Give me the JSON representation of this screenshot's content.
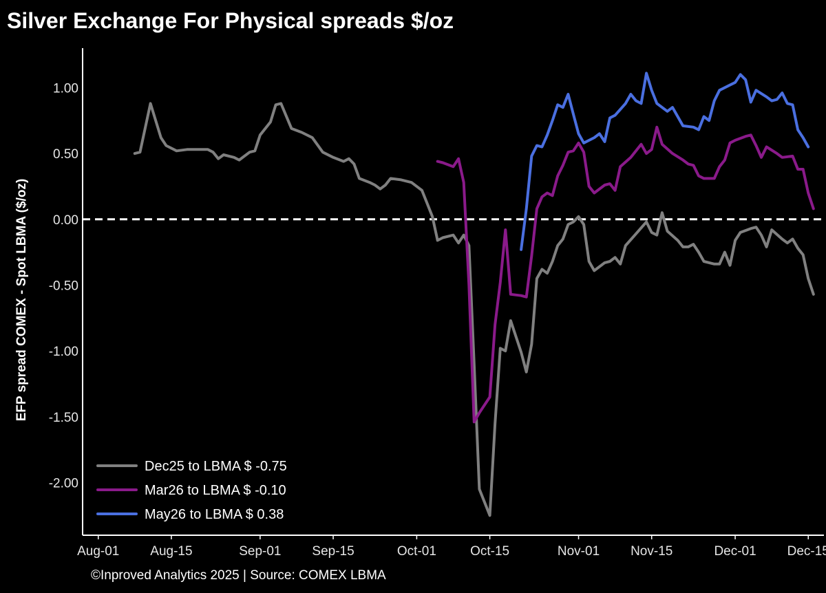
{
  "title": "Silver Exchange For Physical spreads $/oz",
  "footer": "©Inproved Analytics 2025 | Source: COMEX LBMA",
  "chart_data": {
    "type": "line",
    "title": "Silver Exchange For Physical spreads $/oz",
    "xlabel": "",
    "ylabel": "EFP spread COMEX - Spot LBMA ($/oz)",
    "xlim": [
      "2025-07-29",
      "2025-12-18"
    ],
    "ylim": [
      -2.4,
      1.3
    ],
    "x_ticks": [
      {
        "date": "2025-08-01",
        "label": "Aug-01"
      },
      {
        "date": "2025-08-15",
        "label": "Aug-15"
      },
      {
        "date": "2025-09-01",
        "label": "Sep-01"
      },
      {
        "date": "2025-09-15",
        "label": "Sep-15"
      },
      {
        "date": "2025-10-01",
        "label": "Oct-01"
      },
      {
        "date": "2025-10-15",
        "label": "Oct-15"
      },
      {
        "date": "2025-11-01",
        "label": "Nov-01"
      },
      {
        "date": "2025-11-15",
        "label": "Nov-15"
      },
      {
        "date": "2025-12-01",
        "label": "Dec-01"
      },
      {
        "date": "2025-12-15",
        "label": "Dec-15"
      }
    ],
    "y_ticks": [
      {
        "value": 1.0,
        "label": "1.00"
      },
      {
        "value": 0.5,
        "label": "0.50"
      },
      {
        "value": 0.0,
        "label": "0.00"
      },
      {
        "value": -0.5,
        "label": "-0.50"
      },
      {
        "value": -1.0,
        "label": "-1.00"
      },
      {
        "value": -1.5,
        "label": "-1.50"
      },
      {
        "value": -2.0,
        "label": "-2.00"
      }
    ],
    "zero_line": true,
    "grid": false,
    "legend_position": "bottom-left",
    "series": [
      {
        "name": "Dec25 to LBMA $ -0.75",
        "color": "#808080",
        "points": [
          [
            "2025-08-08",
            0.5
          ],
          [
            "2025-08-09",
            0.51
          ],
          [
            "2025-08-11",
            0.88
          ],
          [
            "2025-08-13",
            0.62
          ],
          [
            "2025-08-14",
            0.56
          ],
          [
            "2025-08-16",
            0.52
          ],
          [
            "2025-08-18",
            0.53
          ],
          [
            "2025-08-20",
            0.53
          ],
          [
            "2025-08-22",
            0.53
          ],
          [
            "2025-08-23",
            0.51
          ],
          [
            "2025-08-24",
            0.46
          ],
          [
            "2025-08-25",
            0.49
          ],
          [
            "2025-08-27",
            0.47
          ],
          [
            "2025-08-28",
            0.45
          ],
          [
            "2025-08-30",
            0.51
          ],
          [
            "2025-08-31",
            0.52
          ],
          [
            "2025-09-01",
            0.64
          ],
          [
            "2025-09-03",
            0.74
          ],
          [
            "2025-09-04",
            0.87
          ],
          [
            "2025-09-05",
            0.88
          ],
          [
            "2025-09-07",
            0.69
          ],
          [
            "2025-09-09",
            0.66
          ],
          [
            "2025-09-11",
            0.62
          ],
          [
            "2025-09-13",
            0.51
          ],
          [
            "2025-09-15",
            0.47
          ],
          [
            "2025-09-17",
            0.44
          ],
          [
            "2025-09-18",
            0.46
          ],
          [
            "2025-09-19",
            0.42
          ],
          [
            "2025-09-20",
            0.31
          ],
          [
            "2025-09-22",
            0.28
          ],
          [
            "2025-09-23",
            0.26
          ],
          [
            "2025-09-24",
            0.23
          ],
          [
            "2025-09-25",
            0.26
          ],
          [
            "2025-09-26",
            0.31
          ],
          [
            "2025-09-28",
            0.3
          ],
          [
            "2025-09-30",
            0.28
          ],
          [
            "2025-10-02",
            0.22
          ],
          [
            "2025-10-03",
            0.12
          ],
          [
            "2025-10-04",
            0.02
          ],
          [
            "2025-10-05",
            -0.16
          ],
          [
            "2025-10-06",
            -0.14
          ],
          [
            "2025-10-08",
            -0.12
          ],
          [
            "2025-10-09",
            -0.18
          ],
          [
            "2025-10-10",
            -0.12
          ],
          [
            "2025-10-11",
            -0.2
          ],
          [
            "2025-10-12",
            -1.1
          ],
          [
            "2025-10-13",
            -2.05
          ],
          [
            "2025-10-15",
            -2.25
          ],
          [
            "2025-10-16",
            -1.55
          ],
          [
            "2025-10-17",
            -0.98
          ],
          [
            "2025-10-18",
            -1.0
          ],
          [
            "2025-10-19",
            -0.77
          ],
          [
            "2025-10-21",
            -1.01
          ],
          [
            "2025-10-22",
            -1.16
          ],
          [
            "2025-10-23",
            -0.95
          ],
          [
            "2025-10-24",
            -0.45
          ],
          [
            "2025-10-25",
            -0.38
          ],
          [
            "2025-10-26",
            -0.41
          ],
          [
            "2025-10-27",
            -0.32
          ],
          [
            "2025-10-28",
            -0.2
          ],
          [
            "2025-10-29",
            -0.15
          ],
          [
            "2025-10-30",
            -0.04
          ],
          [
            "2025-10-31",
            -0.02
          ],
          [
            "2025-11-01",
            0.02
          ],
          [
            "2025-11-02",
            -0.04
          ],
          [
            "2025-11-03",
            -0.32
          ],
          [
            "2025-11-04",
            -0.39
          ],
          [
            "2025-11-06",
            -0.33
          ],
          [
            "2025-11-07",
            -0.32
          ],
          [
            "2025-11-08",
            -0.29
          ],
          [
            "2025-11-09",
            -0.34
          ],
          [
            "2025-11-10",
            -0.2
          ],
          [
            "2025-11-12",
            -0.11
          ],
          [
            "2025-11-14",
            -0.02
          ],
          [
            "2025-11-15",
            -0.1
          ],
          [
            "2025-11-16",
            -0.12
          ],
          [
            "2025-11-17",
            0.05
          ],
          [
            "2025-11-18",
            -0.09
          ],
          [
            "2025-11-20",
            -0.16
          ],
          [
            "2025-11-21",
            -0.21
          ],
          [
            "2025-11-22",
            -0.21
          ],
          [
            "2025-11-23",
            -0.19
          ],
          [
            "2025-11-24",
            -0.25
          ],
          [
            "2025-11-25",
            -0.32
          ],
          [
            "2025-11-27",
            -0.34
          ],
          [
            "2025-11-28",
            -0.34
          ],
          [
            "2025-11-29",
            -0.25
          ],
          [
            "2025-11-30",
            -0.35
          ],
          [
            "2025-12-01",
            -0.16
          ],
          [
            "2025-12-02",
            -0.1
          ],
          [
            "2025-12-04",
            -0.07
          ],
          [
            "2025-12-05",
            -0.06
          ],
          [
            "2025-12-06",
            -0.12
          ],
          [
            "2025-12-07",
            -0.21
          ],
          [
            "2025-12-08",
            -0.08
          ],
          [
            "2025-12-10",
            -0.15
          ],
          [
            "2025-12-11",
            -0.18
          ],
          [
            "2025-12-12",
            -0.15
          ],
          [
            "2025-12-13",
            -0.22
          ],
          [
            "2025-12-14",
            -0.27
          ],
          [
            "2025-12-15",
            -0.45
          ],
          [
            "2025-12-16",
            -0.57
          ]
        ]
      },
      {
        "name": "Mar26 to LBMA $ -0.10",
        "color": "#8A1A8A",
        "points": [
          [
            "2025-10-05",
            0.44
          ],
          [
            "2025-10-06",
            0.43
          ],
          [
            "2025-10-08",
            0.4
          ],
          [
            "2025-10-09",
            0.46
          ],
          [
            "2025-10-10",
            0.28
          ],
          [
            "2025-10-11",
            -0.5
          ],
          [
            "2025-10-12",
            -1.54
          ],
          [
            "2025-10-13",
            -1.47
          ],
          [
            "2025-10-15",
            -1.35
          ],
          [
            "2025-10-16",
            -0.8
          ],
          [
            "2025-10-17",
            -0.48
          ],
          [
            "2025-10-18",
            -0.08
          ],
          [
            "2025-10-19",
            -0.57
          ],
          [
            "2025-10-21",
            -0.58
          ],
          [
            "2025-10-22",
            -0.59
          ],
          [
            "2025-10-23",
            -0.28
          ],
          [
            "2025-10-24",
            0.08
          ],
          [
            "2025-10-25",
            0.17
          ],
          [
            "2025-10-26",
            0.2
          ],
          [
            "2025-10-27",
            0.18
          ],
          [
            "2025-10-28",
            0.33
          ],
          [
            "2025-10-29",
            0.41
          ],
          [
            "2025-10-30",
            0.51
          ],
          [
            "2025-10-31",
            0.52
          ],
          [
            "2025-11-01",
            0.58
          ],
          [
            "2025-11-02",
            0.51
          ],
          [
            "2025-11-03",
            0.25
          ],
          [
            "2025-11-04",
            0.2
          ],
          [
            "2025-11-06",
            0.26
          ],
          [
            "2025-11-07",
            0.27
          ],
          [
            "2025-11-08",
            0.22
          ],
          [
            "2025-11-09",
            0.4
          ],
          [
            "2025-11-11",
            0.47
          ],
          [
            "2025-11-13",
            0.57
          ],
          [
            "2025-11-14",
            0.5
          ],
          [
            "2025-11-15",
            0.53
          ],
          [
            "2025-11-16",
            0.7
          ],
          [
            "2025-11-17",
            0.57
          ],
          [
            "2025-11-19",
            0.5
          ],
          [
            "2025-11-21",
            0.45
          ],
          [
            "2025-11-22",
            0.42
          ],
          [
            "2025-11-23",
            0.41
          ],
          [
            "2025-11-24",
            0.33
          ],
          [
            "2025-11-25",
            0.31
          ],
          [
            "2025-11-27",
            0.31
          ],
          [
            "2025-11-28",
            0.4
          ],
          [
            "2025-11-29",
            0.45
          ],
          [
            "2025-11-30",
            0.58
          ],
          [
            "2025-12-01",
            0.6
          ],
          [
            "2025-12-03",
            0.63
          ],
          [
            "2025-12-04",
            0.64
          ],
          [
            "2025-12-05",
            0.56
          ],
          [
            "2025-12-06",
            0.47
          ],
          [
            "2025-12-07",
            0.55
          ],
          [
            "2025-12-09",
            0.5
          ],
          [
            "2025-12-10",
            0.47
          ],
          [
            "2025-12-12",
            0.48
          ],
          [
            "2025-12-13",
            0.38
          ],
          [
            "2025-12-14",
            0.38
          ],
          [
            "2025-12-15",
            0.2
          ],
          [
            "2025-12-16",
            0.08
          ]
        ]
      },
      {
        "name": "May26 to LBMA $ 0.38",
        "color": "#4A6FE0",
        "points": [
          [
            "2025-10-21",
            -0.23
          ],
          [
            "2025-10-22",
            0.08
          ],
          [
            "2025-10-23",
            0.48
          ],
          [
            "2025-10-24",
            0.56
          ],
          [
            "2025-10-25",
            0.55
          ],
          [
            "2025-10-26",
            0.64
          ],
          [
            "2025-10-27",
            0.75
          ],
          [
            "2025-10-28",
            0.87
          ],
          [
            "2025-10-29",
            0.85
          ],
          [
            "2025-10-30",
            0.95
          ],
          [
            "2025-10-31",
            0.8
          ],
          [
            "2025-11-01",
            0.65
          ],
          [
            "2025-11-02",
            0.58
          ],
          [
            "2025-11-04",
            0.62
          ],
          [
            "2025-11-05",
            0.65
          ],
          [
            "2025-11-06",
            0.59
          ],
          [
            "2025-11-07",
            0.77
          ],
          [
            "2025-11-08",
            0.79
          ],
          [
            "2025-11-10",
            0.88
          ],
          [
            "2025-11-11",
            0.95
          ],
          [
            "2025-11-12",
            0.9
          ],
          [
            "2025-11-13",
            0.88
          ],
          [
            "2025-11-14",
            1.11
          ],
          [
            "2025-11-15",
            0.98
          ],
          [
            "2025-11-16",
            0.88
          ],
          [
            "2025-11-18",
            0.82
          ],
          [
            "2025-11-19",
            0.85
          ],
          [
            "2025-11-20",
            0.78
          ],
          [
            "2025-11-21",
            0.71
          ],
          [
            "2025-11-23",
            0.7
          ],
          [
            "2025-11-24",
            0.68
          ],
          [
            "2025-11-25",
            0.78
          ],
          [
            "2025-11-26",
            0.75
          ],
          [
            "2025-11-27",
            0.9
          ],
          [
            "2025-11-28",
            0.98
          ],
          [
            "2025-11-30",
            1.02
          ],
          [
            "2025-12-01",
            1.04
          ],
          [
            "2025-12-02",
            1.1
          ],
          [
            "2025-12-03",
            1.06
          ],
          [
            "2025-12-04",
            0.89
          ],
          [
            "2025-12-05",
            0.98
          ],
          [
            "2025-12-07",
            0.93
          ],
          [
            "2025-12-08",
            0.9
          ],
          [
            "2025-12-09",
            0.91
          ],
          [
            "2025-12-10",
            0.96
          ],
          [
            "2025-12-11",
            0.88
          ],
          [
            "2025-12-12",
            0.87
          ],
          [
            "2025-12-13",
            0.68
          ],
          [
            "2025-12-14",
            0.62
          ],
          [
            "2025-12-15",
            0.55
          ]
        ]
      }
    ]
  }
}
